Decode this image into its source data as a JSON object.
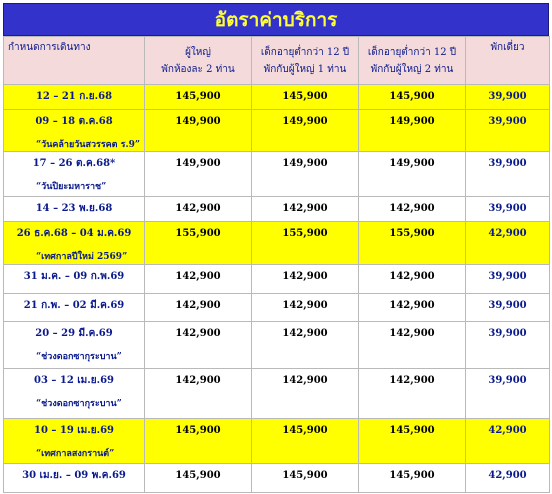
{
  "title": "อัตราค่าบริการ",
  "headers": {
    "date": "กำหนดการเดินทาง",
    "adult": [
      "ผู้ใหญ่",
      "พักห้องละ 2 ท่าน"
    ],
    "child1": [
      "เด็กอายุต่ำกว่า 12 ปี",
      "พักกับผู้ใหญ่ 1 ท่าน"
    ],
    "child2": [
      "เด็กอายุต่ำกว่า 12 ปี",
      "พักกับผู้ใหญ่ 2 ท่าน"
    ],
    "single": "พักเดี่ยว"
  },
  "colors": {
    "header_bar": "#3333cc",
    "title_text": "#ffff33",
    "highlight": "#ffff00",
    "header_row": "#f4dada"
  },
  "rows": [
    {
      "date": "12 – 21 ก.ย.68",
      "note": "",
      "adult": "145,900",
      "child1": "145,900",
      "child2": "145,900",
      "single": "39,900",
      "highlight": true
    },
    {
      "date": "09 – 18 ต.ค.68",
      "note": "“วันคล้ายวันสวรรคต ร.9”",
      "adult": "149,900",
      "child1": "149,900",
      "child2": "149,900",
      "single": "39,900",
      "highlight": true
    },
    {
      "date": "17 – 26 ต.ค.68*",
      "note": "“วันปิยะมหาราช”",
      "adult": "149,900",
      "child1": "149,900",
      "child2": "149,900",
      "single": "39,900",
      "highlight": false
    },
    {
      "date": "14 – 23 พ.ย.68",
      "note": "",
      "adult": "142,900",
      "child1": "142,900",
      "child2": "142,900",
      "single": "39,900",
      "highlight": false
    },
    {
      "date": "26 ธ.ค.68 – 04 ม.ค.69",
      "note": "“เทศกาลปีใหม่ 2569”",
      "adult": "155,900",
      "child1": "155,900",
      "child2": "155,900",
      "single": "42,900",
      "highlight": true
    },
    {
      "date": "31 ม.ค. – 09 ก.พ.69",
      "note": "",
      "adult": "142,900",
      "child1": "142,900",
      "child2": "142,900",
      "single": "39,900",
      "highlight": false
    },
    {
      "date": "21 ก.พ. – 02 มี.ค.69",
      "note": "",
      "adult": "142,900",
      "child1": "142,900",
      "child2": "142,900",
      "single": "39,900",
      "highlight": false
    },
    {
      "date": "20 – 29 มี.ค.69",
      "note": "“ช่วงดอกซากุระบาน”",
      "adult": "142,900",
      "child1": "142,900",
      "child2": "142,900",
      "single": "39,900",
      "highlight": false
    },
    {
      "date": "03 – 12 เม.ย.69",
      "note": "“ช่วงดอกซากุระบาน”",
      "adult": "142,900",
      "child1": "142,900",
      "child2": "142,900",
      "single": "39,900",
      "highlight": false
    },
    {
      "date": "10 – 19 เม.ย.69",
      "note": "“เทศกาลสงกรานต์”",
      "adult": "145,900",
      "child1": "145,900",
      "child2": "145,900",
      "single": "42,900",
      "highlight": true
    },
    {
      "date": "30 เม.ย. – 09 พ.ค.69",
      "note": "",
      "adult": "145,900",
      "child1": "145,900",
      "child2": "145,900",
      "single": "42,900",
      "highlight": false
    }
  ]
}
